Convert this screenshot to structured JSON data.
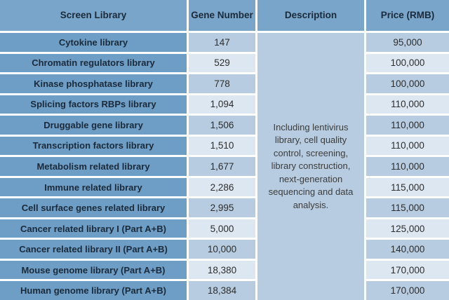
{
  "table": {
    "header": {
      "library": "Screen Library",
      "gene_number": "Gene Number",
      "description": "Description",
      "price": "Price (RMB)"
    },
    "description_text": "Including lentivirus library, cell quality control, screening, library construction, next-generation sequencing and data analysis.",
    "rows": [
      {
        "library": "Cytokine library",
        "gene_number": "147",
        "price": "95,000"
      },
      {
        "library": "Chromatin regulators library",
        "gene_number": "529",
        "price": "100,000"
      },
      {
        "library": "Kinase phosphatase library",
        "gene_number": "778",
        "price": "100,000"
      },
      {
        "library": "Splicing factors RBPs library",
        "gene_number": "1,094",
        "price": "110,000"
      },
      {
        "library": "Druggable gene library",
        "gene_number": "1,506",
        "price": "110,000"
      },
      {
        "library": "Transcription factors library",
        "gene_number": "1,510",
        "price": "110,000"
      },
      {
        "library": "Metabolism related library",
        "gene_number": "1,677",
        "price": "110,000"
      },
      {
        "library": "Immune related library",
        "gene_number": "2,286",
        "price": "115,000"
      },
      {
        "library": "Cell surface genes related library",
        "gene_number": "2,995",
        "price": "115,000"
      },
      {
        "library": "Cancer related library I (Part A+B)",
        "gene_number": "5,000",
        "price": "125,000"
      },
      {
        "library": "Cancer related library II (Part A+B)",
        "gene_number": "10,000",
        "price": "140,000"
      },
      {
        "library": "Mouse genome library (Part A+B)",
        "gene_number": "18,380",
        "price": "170,000"
      },
      {
        "library": "Human genome library (Part A+B)",
        "gene_number": "18,384",
        "price": "170,000"
      }
    ],
    "colors": {
      "header_bg": "#7aa5ca",
      "label_bg": "#6e9ec6",
      "band_dark": "#b7cce0",
      "band_light": "#dde7f1",
      "desc_bg": "#b7cce0",
      "gap": "#ffffff",
      "heading_text": "#1b2a3a",
      "number_text": "#2d2d2d",
      "desc_text": "#3c3c3c"
    }
  }
}
